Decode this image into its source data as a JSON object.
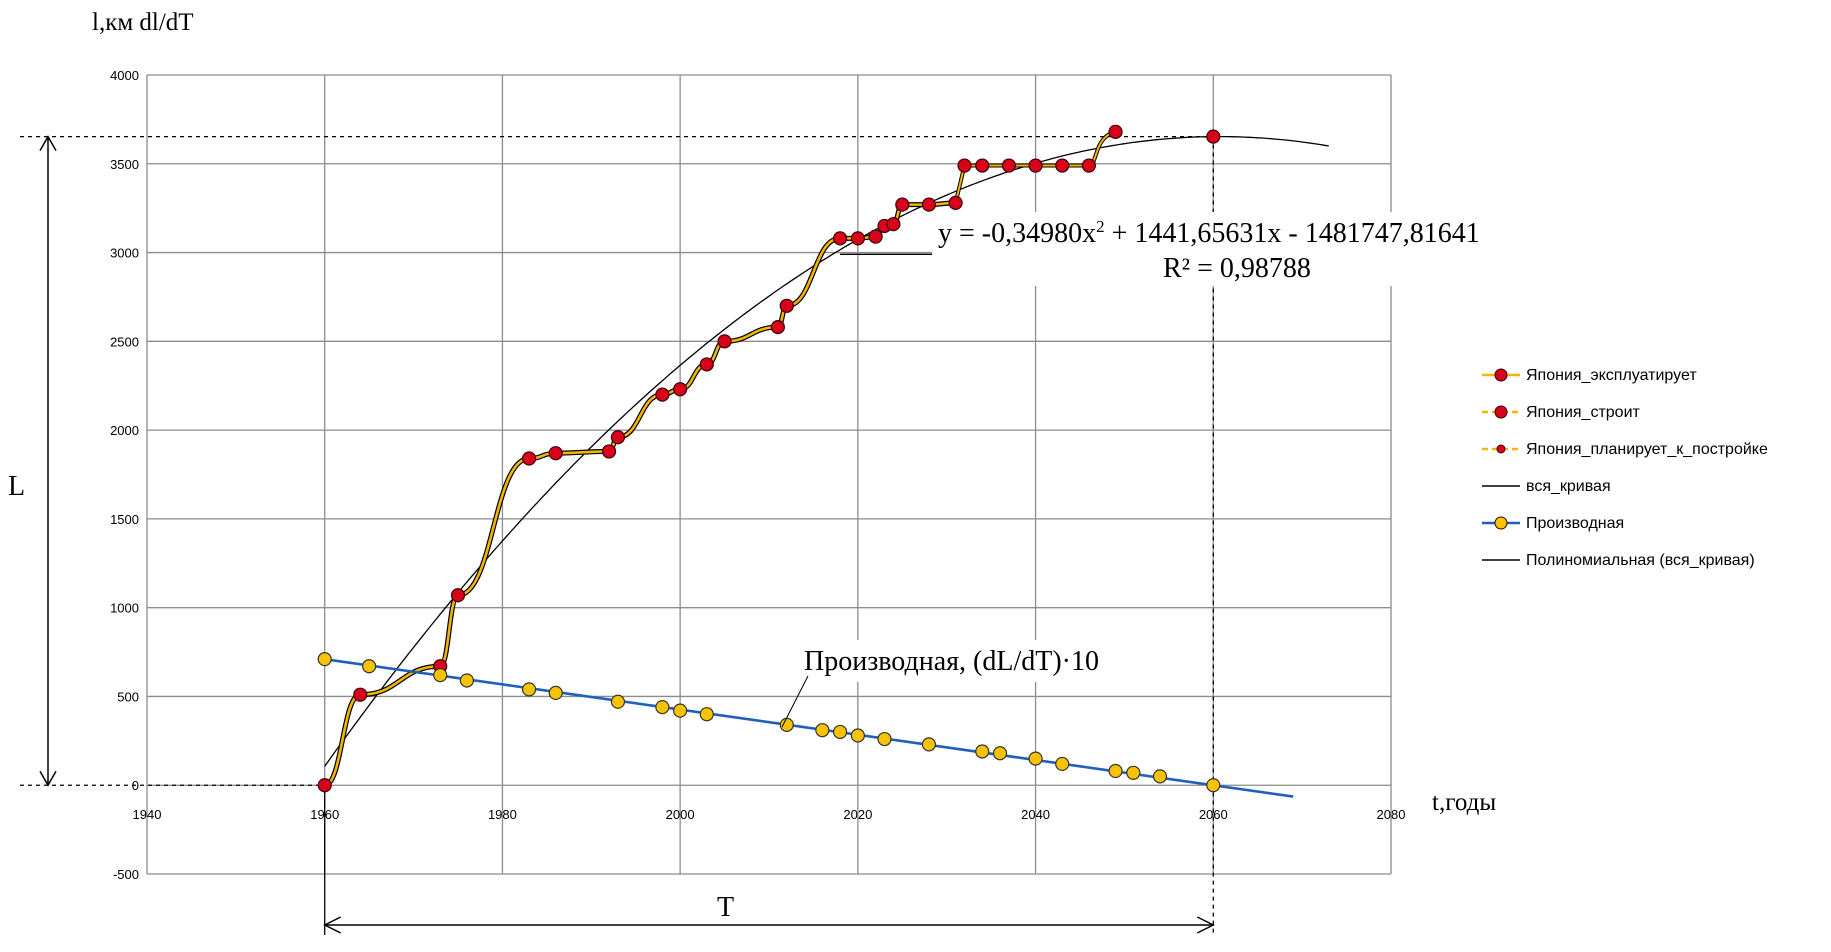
{
  "chart_data": {
    "type": "line",
    "y_axis_label": "l,км dl/dT",
    "x_axis_label": "t,годы",
    "xlim": [
      1940,
      2080
    ],
    "ylim": [
      -500,
      4000
    ],
    "x_ticks": [
      1940,
      1960,
      1980,
      2000,
      2020,
      2040,
      2060,
      2080
    ],
    "y_ticks": [
      -500,
      0,
      500,
      1000,
      1500,
      2000,
      2500,
      3000,
      3500,
      4000
    ],
    "grid": true,
    "legend_position": "right",
    "colors": {
      "operating": "#f5b400",
      "marker_red": "#d9001b",
      "derivative_line": "#1f5fbf",
      "derivative_marker": "#f7c300",
      "trend": "#000000"
    },
    "series": [
      {
        "name": "Япония_эксплуатирует",
        "points": [
          [
            1960,
            0
          ],
          [
            1964,
            510
          ],
          [
            1973,
            670
          ],
          [
            1975,
            1070
          ],
          [
            1983,
            1840
          ],
          [
            1986,
            1870
          ],
          [
            1992,
            1880
          ],
          [
            1993,
            1960
          ],
          [
            1998,
            2200
          ],
          [
            2000,
            2230
          ],
          [
            2003,
            2370
          ],
          [
            2005,
            2500
          ],
          [
            2011,
            2580
          ],
          [
            2012,
            2700
          ],
          [
            2018,
            3080
          ],
          [
            2020,
            3080
          ],
          [
            2022,
            3090
          ],
          [
            2023,
            3150
          ],
          [
            2024,
            3160
          ],
          [
            2025,
            3270
          ],
          [
            2028,
            3270
          ],
          [
            2031,
            3280
          ]
        ]
      },
      {
        "name": "Япония_строит",
        "points": [
          [
            2032,
            3490
          ],
          [
            2034,
            3490
          ],
          [
            2037,
            3490
          ],
          [
            2040,
            3490
          ],
          [
            2043,
            3490
          ],
          [
            2046,
            3490
          ]
        ]
      },
      {
        "name": "Япония_планирует_к_постройке",
        "points": [
          [
            2049,
            3680
          ]
        ]
      },
      {
        "name": "Производная",
        "points": [
          [
            1960,
            710
          ],
          [
            1965,
            670
          ],
          [
            1973,
            620
          ],
          [
            1976,
            590
          ],
          [
            1983,
            540
          ],
          [
            1986,
            520
          ],
          [
            1993,
            470
          ],
          [
            1998,
            440
          ],
          [
            2000,
            420
          ],
          [
            2003,
            400
          ],
          [
            2012,
            340
          ],
          [
            2016,
            310
          ],
          [
            2018,
            300
          ],
          [
            2020,
            280
          ],
          [
            2023,
            260
          ],
          [
            2028,
            230
          ],
          [
            2034,
            190
          ],
          [
            2036,
            180
          ],
          [
            2040,
            150
          ],
          [
            2043,
            120
          ],
          [
            2049,
            80
          ],
          [
            2051,
            70
          ],
          [
            2054,
            50
          ],
          [
            2060,
            0
          ]
        ]
      }
    ],
    "legend": [
      "Япония_эксплуатирует",
      "Япония_строит",
      "Япония_планирует_к_постройке",
      "вся_кривая",
      "Производная",
      "Полиномиальная (вся_кривая)"
    ],
    "trend": {
      "name": "Полиномиальная (вся_кривая)",
      "a": -0.3498,
      "b": 1441.65631,
      "c": -1481747.81641,
      "x_range": [
        1960,
        2073
      ]
    },
    "derivative_line_x": [
      1960,
      2069
    ],
    "annotations": {
      "equation_prefix": "y = -0,34980x",
      "equation_exp": "2",
      "equation_suffix": " + 1441,65631x - 1481747,81641",
      "r2": "R² = 0,98788",
      "derivative_label": "Производная, (dL/dT)·10",
      "L": "L",
      "T": "T"
    }
  }
}
